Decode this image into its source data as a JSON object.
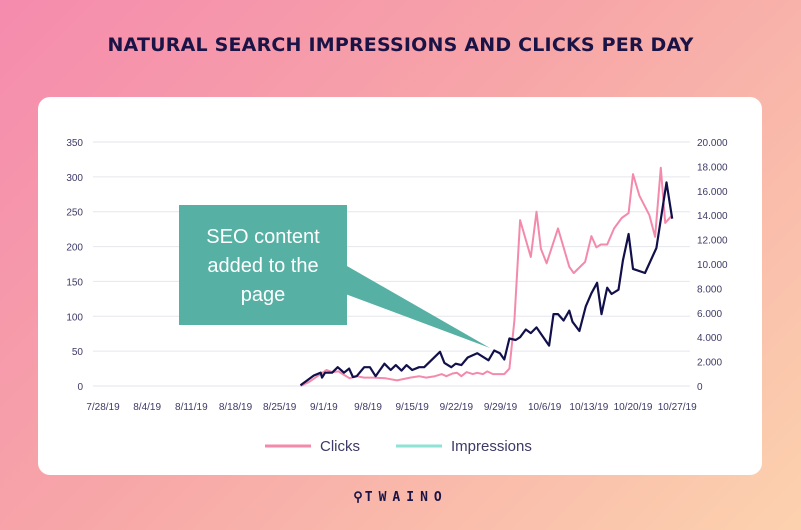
{
  "title": "NATURAL SEARCH IMPRESSIONS AND CLICKS PER DAY",
  "logo": "TWAINO",
  "annotation": {
    "lines": [
      "SEO content",
      "added to the",
      "page"
    ],
    "color": "#56b0a4"
  },
  "chart_data": {
    "type": "line",
    "title": "NATURAL SEARCH IMPRESSIONS AND CLICKS PER DAY",
    "x_unit": "days since 7/28/19",
    "x_tick_labels": [
      "7/28/19",
      "8/4/19",
      "8/11/19",
      "8/18/19",
      "8/25/19",
      "9/1/19",
      "9/8/19",
      "9/15/19",
      "9/22/19",
      "9/29/19",
      "10/6/19",
      "10/13/19",
      "10/20/19",
      "10/27/19"
    ],
    "y_left": {
      "ticks": [
        "0",
        "50",
        "100",
        "150",
        "200",
        "250",
        "300",
        "350"
      ],
      "range": [
        0,
        350
      ]
    },
    "y_right": {
      "ticks": [
        "0",
        "2.000",
        "4.000",
        "6.000",
        "8.000",
        "10.000",
        "12.000",
        "14.000",
        "16.000",
        "18.000",
        "20.000"
      ],
      "range": [
        0,
        20000
      ]
    },
    "grid": true,
    "legend": {
      "placement": "bottom",
      "entries": [
        {
          "label": "Clicks",
          "color": "#f48aab"
        },
        {
          "label": "Impressions",
          "color": "#8ee3d6"
        }
      ]
    },
    "series": [
      {
        "name": "Clicks",
        "axis": "left",
        "color": "#f48aab",
        "points": [
          [
            31.3,
            0
          ],
          [
            32.7,
            6
          ],
          [
            33.8,
            13
          ],
          [
            34.5,
            17
          ],
          [
            35.4,
            23
          ],
          [
            36.3,
            20
          ],
          [
            37.3,
            21
          ],
          [
            38,
            17
          ],
          [
            39.1,
            11
          ],
          [
            40.2,
            14
          ],
          [
            41.4,
            12
          ],
          [
            43,
            12
          ],
          [
            44.8,
            11
          ],
          [
            46.6,
            8
          ],
          [
            48.7,
            12
          ],
          [
            50.1,
            14
          ],
          [
            51.2,
            12
          ],
          [
            52.6,
            14
          ],
          [
            53.7,
            17
          ],
          [
            54.4,
            14
          ],
          [
            55.4,
            18
          ],
          [
            56.1,
            19
          ],
          [
            56.8,
            14
          ],
          [
            57.6,
            20
          ],
          [
            58.6,
            17
          ],
          [
            59.3,
            19
          ],
          [
            60.2,
            17
          ],
          [
            60.9,
            21
          ],
          [
            61.8,
            17
          ],
          [
            63.6,
            17
          ],
          [
            64.4,
            25
          ],
          [
            65.2,
            94
          ],
          [
            66.1,
            238
          ],
          [
            67.8,
            185
          ],
          [
            68.7,
            250
          ],
          [
            69.4,
            197
          ],
          [
            70.3,
            176
          ],
          [
            72.1,
            226
          ],
          [
            73.9,
            171
          ],
          [
            74.6,
            162
          ],
          [
            76.4,
            178
          ],
          [
            77.4,
            215
          ],
          [
            78.2,
            199
          ],
          [
            78.9,
            203
          ],
          [
            79.9,
            203
          ],
          [
            81,
            226
          ],
          [
            82.2,
            241
          ],
          [
            83.3,
            248
          ],
          [
            84,
            304
          ],
          [
            85,
            273
          ],
          [
            86.6,
            245
          ],
          [
            87.5,
            214
          ],
          [
            88.4,
            313
          ],
          [
            89.1,
            234
          ],
          [
            90.2,
            245
          ]
        ]
      },
      {
        "name": "Impressions",
        "axis": "right",
        "color": "#12104a",
        "points": [
          [
            31.3,
            60
          ],
          [
            33.4,
            860
          ],
          [
            34.5,
            1090
          ],
          [
            34.7,
            690
          ],
          [
            35.2,
            1090
          ],
          [
            36.3,
            1090
          ],
          [
            37.2,
            1540
          ],
          [
            38.2,
            1090
          ],
          [
            39,
            1430
          ],
          [
            39.6,
            740
          ],
          [
            40.2,
            800
          ],
          [
            41.4,
            1540
          ],
          [
            42.3,
            1540
          ],
          [
            43.2,
            800
          ],
          [
            44.6,
            1830
          ],
          [
            45.6,
            1310
          ],
          [
            46.4,
            1710
          ],
          [
            47.3,
            1260
          ],
          [
            48.1,
            1710
          ],
          [
            49,
            1310
          ],
          [
            50.1,
            1540
          ],
          [
            50.9,
            1540
          ],
          [
            53.4,
            2800
          ],
          [
            54.1,
            1890
          ],
          [
            55.2,
            1540
          ],
          [
            55.9,
            1830
          ],
          [
            56.8,
            1710
          ],
          [
            57.8,
            2340
          ],
          [
            59.3,
            2690
          ],
          [
            61.1,
            2110
          ],
          [
            62,
            2910
          ],
          [
            62.9,
            2690
          ],
          [
            63.6,
            2170
          ],
          [
            64.4,
            3890
          ],
          [
            65.4,
            3770
          ],
          [
            66.1,
            4000
          ],
          [
            67,
            4630
          ],
          [
            67.8,
            4340
          ],
          [
            68.7,
            4800
          ],
          [
            70.7,
            3310
          ],
          [
            71.4,
            5890
          ],
          [
            72.1,
            5890
          ],
          [
            73,
            5370
          ],
          [
            73.9,
            6170
          ],
          [
            74.4,
            5260
          ],
          [
            75.5,
            4510
          ],
          [
            76.5,
            6510
          ],
          [
            77.4,
            7600
          ],
          [
            78.3,
            8460
          ],
          [
            79,
            5890
          ],
          [
            79.9,
            8060
          ],
          [
            80.6,
            7540
          ],
          [
            81.7,
            7890
          ],
          [
            82.4,
            10290
          ],
          [
            83.3,
            12460
          ],
          [
            84,
            9600
          ],
          [
            85.9,
            9260
          ],
          [
            87.7,
            11310
          ],
          [
            89.3,
            16690
          ],
          [
            90.2,
            13710
          ]
        ]
      }
    ]
  }
}
